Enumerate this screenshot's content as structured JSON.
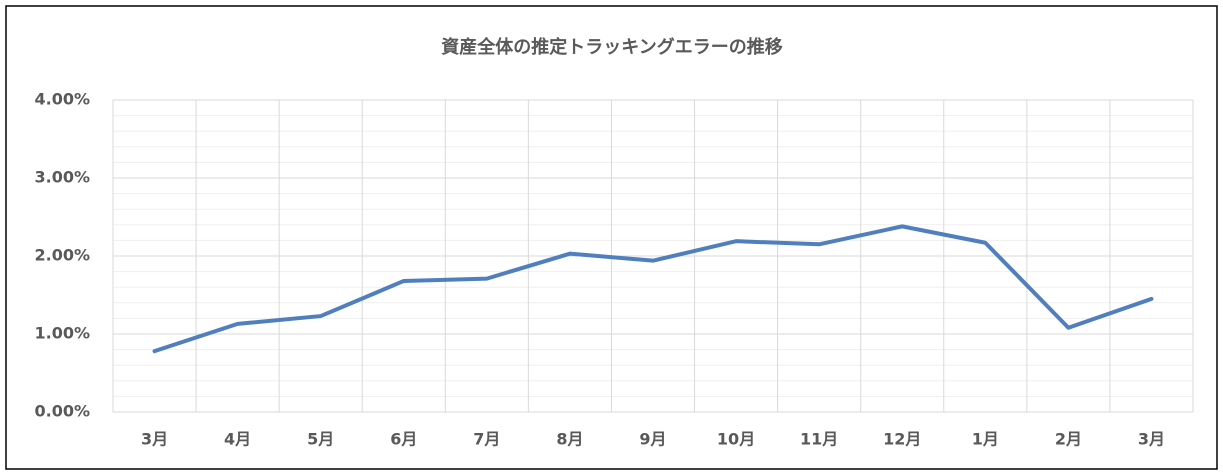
{
  "chart_data": {
    "type": "line",
    "title": "資産全体の推定トラッキングエラーの推移",
    "categories": [
      "3月",
      "4月",
      "5月",
      "6月",
      "7月",
      "8月",
      "9月",
      "10月",
      "11月",
      "12月",
      "1月",
      "2月",
      "3月"
    ],
    "series": [
      {
        "name": "推定トラッキングエラー",
        "color": "#4f7fbd",
        "values": [
          0.78,
          1.13,
          1.23,
          1.68,
          1.71,
          2.03,
          1.94,
          2.19,
          2.15,
          2.38,
          2.17,
          1.08,
          1.45
        ]
      }
    ],
    "ylim": [
      0,
      4
    ],
    "yticks": [
      {
        "value": 0,
        "label": "0.00%"
      },
      {
        "value": 1,
        "label": "1.00%"
      },
      {
        "value": 2,
        "label": "2.00%"
      },
      {
        "value": 3,
        "label": "3.00%"
      },
      {
        "value": 4,
        "label": "4.00%"
      }
    ],
    "yminor_ticks": [
      0.2,
      0.4,
      0.6,
      0.8,
      1.2,
      1.4,
      1.6,
      1.8,
      2.2,
      2.4,
      2.6,
      2.8,
      3.2,
      3.4,
      3.6,
      3.8
    ],
    "grid": true,
    "legend": false
  }
}
